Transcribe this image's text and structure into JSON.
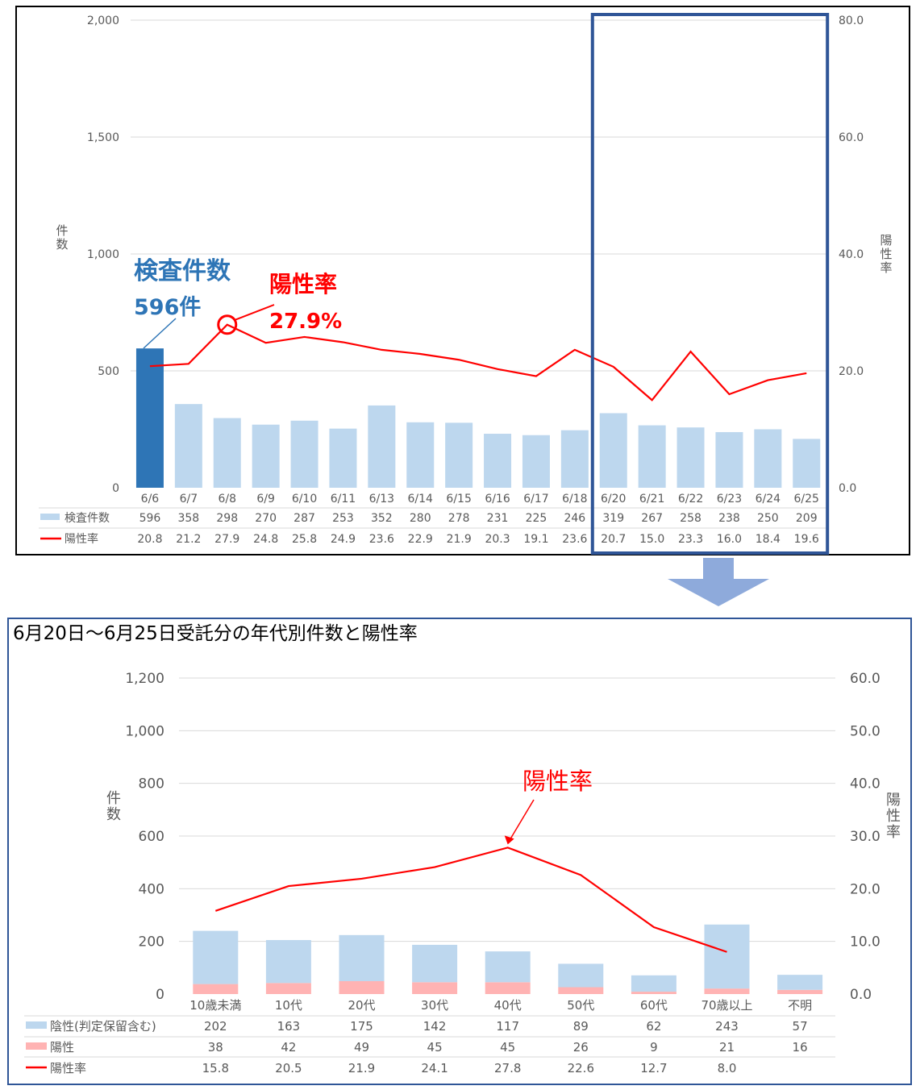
{
  "chart_data": [
    {
      "type": "bar",
      "categories": [
        "6/6",
        "6/7",
        "6/8",
        "6/9",
        "6/10",
        "6/11",
        "6/13",
        "6/14",
        "6/15",
        "6/16",
        "6/17",
        "6/18",
        "6/20",
        "6/21",
        "6/22",
        "6/23",
        "6/24",
        "6/25"
      ],
      "series": [
        {
          "name": "検査件数",
          "values": [
            596,
            358,
            298,
            270,
            287,
            253,
            352,
            280,
            278,
            231,
            225,
            246,
            319,
            267,
            258,
            238,
            250,
            209
          ],
          "color": "#bdd7ee",
          "highlight_color": "#2e75b6"
        },
        {
          "name": "陽性率",
          "type": "line",
          "axis": "right",
          "values": [
            20.8,
            21.2,
            27.9,
            24.8,
            25.8,
            24.9,
            23.6,
            22.9,
            21.9,
            20.3,
            19.1,
            23.6,
            20.7,
            15.0,
            23.3,
            16.0,
            18.4,
            19.6
          ],
          "color": "#ff0000"
        }
      ],
      "left_axis": {
        "label": "件数",
        "ylim": [
          0,
          2000
        ],
        "ticks": [
          "0",
          "500",
          "1,000",
          "1,500",
          "2,000"
        ]
      },
      "right_axis": {
        "label": "陽性率",
        "ylim": [
          0,
          80
        ],
        "ticks": [
          "0.0",
          "20.0",
          "40.0",
          "60.0",
          "80.0"
        ]
      },
      "table_rows": [
        {
          "label": "検査件数",
          "values": [
            "596",
            "358",
            "298",
            "270",
            "287",
            "253",
            "352",
            "280",
            "278",
            "231",
            "225",
            "246",
            "319",
            "267",
            "258",
            "238",
            "250",
            "209"
          ]
        },
        {
          "label": "陽性率",
          "values": [
            "20.8",
            "21.2",
            "27.9",
            "24.8",
            "25.8",
            "24.9",
            "23.6",
            "22.9",
            "21.9",
            "20.3",
            "19.1",
            "23.6",
            "20.7",
            "15.0",
            "23.3",
            "16.0",
            "18.4",
            "19.6"
          ]
        }
      ],
      "annotations": {
        "count_title": "検査件数",
        "count_value": "596件",
        "rate_title": "陽性率",
        "rate_value": "27.9%"
      },
      "highlight_range": [
        "6/20",
        "6/25"
      ]
    },
    {
      "type": "bar",
      "stacked": true,
      "title": "6月20日～6月25日受託分の年代別件数と陽性率",
      "categories": [
        "10歳未満",
        "10代",
        "20代",
        "30代",
        "40代",
        "50代",
        "60代",
        "70歳以上",
        "不明"
      ],
      "series": [
        {
          "name": "陽性",
          "values": [
            38,
            42,
            49,
            45,
            45,
            26,
            9,
            21,
            16
          ],
          "color": "#ffb3b3"
        },
        {
          "name": "陰性(判定保留含む)",
          "values": [
            202,
            163,
            175,
            142,
            117,
            89,
            62,
            243,
            57
          ],
          "color": "#bdd7ee"
        },
        {
          "name": "陽性率",
          "type": "line",
          "axis": "right",
          "values": [
            15.8,
            20.5,
            21.9,
            24.1,
            27.8,
            22.6,
            12.7,
            8.0,
            null
          ],
          "color": "#ff0000"
        }
      ],
      "left_axis": {
        "label": "件数",
        "ylim": [
          0,
          1200
        ],
        "ticks": [
          "0",
          "200",
          "400",
          "600",
          "800",
          "1,000",
          "1,200"
        ]
      },
      "right_axis": {
        "label": "陽性率",
        "ylim": [
          0,
          60
        ],
        "ticks": [
          "0.0",
          "10.0",
          "20.0",
          "30.0",
          "40.0",
          "50.0",
          "60.0"
        ]
      },
      "table_rows": [
        {
          "label": "陰性(判定保留含む)",
          "values": [
            "202",
            "163",
            "175",
            "142",
            "117",
            "89",
            "62",
            "243",
            "57"
          ]
        },
        {
          "label": "陽性",
          "values": [
            "38",
            "42",
            "49",
            "45",
            "45",
            "26",
            "9",
            "21",
            "16"
          ]
        },
        {
          "label": "陽性率",
          "values": [
            "15.8",
            "20.5",
            "21.9",
            "24.1",
            "27.8",
            "22.6",
            "12.7",
            "8.0",
            ""
          ]
        }
      ],
      "annotations": {
        "rate_title": "陽性率"
      }
    }
  ],
  "colors": {
    "frame": "#2f5597",
    "arrow": "#8eaadb",
    "axis_text": "#595959",
    "annotation_red": "#ff0000",
    "annotation_blue": "#2e75b6"
  }
}
